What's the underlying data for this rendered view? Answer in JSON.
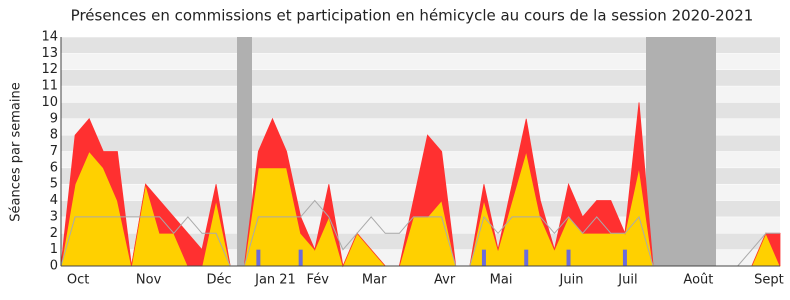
{
  "chart_data": {
    "type": "stacked-area",
    "title": "Présences en commissions et participation en hémicycle au cours de la session 2020-2021",
    "y_label": "Séances par semaine",
    "ylim": [
      0,
      14
    ],
    "yticks": [
      0,
      1,
      2,
      3,
      4,
      5,
      6,
      7,
      8,
      9,
      10,
      11,
      12,
      13,
      14
    ],
    "categories": [
      null,
      "Oct",
      null,
      null,
      null,
      null,
      "Nov",
      null,
      null,
      null,
      null,
      "Déc",
      null,
      null,
      null,
      "Jan 21",
      null,
      null,
      "Fév",
      null,
      null,
      null,
      "Mar",
      null,
      null,
      null,
      null,
      "Avr",
      null,
      null,
      null,
      "Mai",
      null,
      null,
      null,
      null,
      "Juin",
      null,
      null,
      null,
      "Juil",
      null,
      null,
      null,
      null,
      "Août",
      null,
      null,
      null,
      null,
      "Sept",
      null
    ],
    "series": [
      {
        "color": "#ffd000",
        "values": [
          0,
          5,
          7,
          6,
          4,
          0,
          5,
          2,
          2,
          0,
          0,
          4,
          0,
          0,
          6,
          6,
          6,
          2,
          1,
          3,
          0,
          2,
          1,
          0,
          0,
          3,
          3,
          4,
          0,
          0,
          4,
          1,
          4,
          7,
          3,
          1,
          3,
          2,
          2,
          2,
          2,
          6,
          0,
          0,
          0,
          0,
          0,
          0,
          0,
          0,
          2,
          0
        ]
      },
      {
        "color": "#ff3030",
        "values": [
          0,
          3,
          2,
          1,
          3,
          0,
          0,
          2,
          1,
          2,
          1,
          1,
          0,
          0,
          1,
          3,
          1,
          1,
          0,
          2,
          0,
          0,
          0,
          0,
          0,
          1,
          5,
          3,
          0,
          0,
          1,
          0,
          1,
          2,
          1,
          0,
          2,
          1,
          2,
          2,
          0,
          4,
          0,
          0,
          0,
          0,
          0,
          0,
          0,
          0,
          0,
          2
        ]
      },
      {
        "color": "#aaaaaa",
        "line": true,
        "values": [
          0,
          3,
          3,
          3,
          3,
          3,
          3,
          3,
          2,
          3,
          2,
          2,
          0,
          0,
          3,
          3,
          3,
          3,
          4,
          3,
          1,
          2,
          3,
          2,
          2,
          3,
          3,
          3,
          0,
          0,
          3,
          2,
          3,
          3,
          3,
          2,
          3,
          2,
          3,
          2,
          2,
          3,
          0,
          0,
          0,
          0,
          0,
          0,
          0,
          1,
          2,
          2
        ]
      },
      {
        "color": "#6b6bdc",
        "bars": true,
        "values": [
          null,
          null,
          null,
          null,
          null,
          null,
          null,
          null,
          null,
          null,
          null,
          null,
          null,
          null,
          1,
          null,
          null,
          1,
          null,
          null,
          null,
          null,
          null,
          null,
          null,
          null,
          null,
          null,
          null,
          null,
          1,
          null,
          null,
          1,
          null,
          null,
          1,
          null,
          null,
          null,
          1,
          null,
          null,
          null,
          null,
          null,
          null,
          null,
          null,
          null,
          null,
          null
        ]
      }
    ]
  }
}
